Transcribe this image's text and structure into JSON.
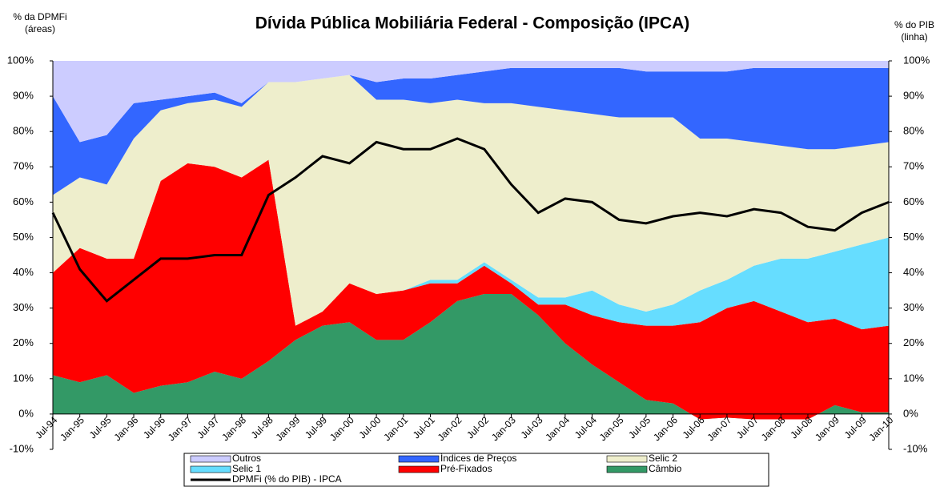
{
  "chart_data": {
    "type": "area",
    "title": "Dívida Pública Mobiliária Federal - Composição (IPCA)",
    "y_label": "% da DPMFi\n(áreas)",
    "y2_label": "% do PIB\n(linha)",
    "categories": [
      "Jul-94",
      "Jan-95",
      "Jul-95",
      "Jan-96",
      "Jul-96",
      "Jan-97",
      "Jul-97",
      "Jan-98",
      "Jul-98",
      "Jan-99",
      "Jul-99",
      "Jan-00",
      "Jul-00",
      "Jan-01",
      "Jul-01",
      "Jan-02",
      "Jul-02",
      "Jan-03",
      "Jul-03",
      "Jan-04",
      "Jul-04",
      "Jan-05",
      "Jul-05",
      "Jan-06",
      "Jul-06",
      "Jan-07",
      "Jul-07",
      "Jan-08",
      "Jul-08",
      "Jan-09",
      "Jul-09",
      "Jan-10"
    ],
    "series": [
      {
        "name": "Outros",
        "color": "#ccccff",
        "values": [
          10,
          23,
          21,
          12,
          11,
          10,
          9,
          12,
          6,
          6,
          5,
          4,
          6,
          5,
          5,
          4,
          3,
          2,
          2,
          2,
          2,
          2,
          3,
          3,
          3,
          3,
          2,
          2,
          2,
          2,
          2,
          2
        ]
      },
      {
        "name": "Índices de Preços",
        "color": "#3366ff",
        "values": [
          28,
          10,
          14,
          10,
          3,
          2,
          2,
          1,
          0,
          0,
          0,
          0,
          5,
          6,
          7,
          7,
          9,
          10,
          11,
          12,
          13,
          14,
          13,
          13,
          19,
          19,
          21,
          22,
          23,
          23,
          22,
          21
        ]
      },
      {
        "name": "Selic 2",
        "color": "#eeeecc",
        "values": [
          22,
          20,
          21,
          34,
          20,
          17,
          19,
          20,
          22,
          69,
          66,
          59,
          55,
          54,
          50,
          51,
          45,
          50,
          54,
          53,
          50,
          53,
          55,
          53,
          43,
          40,
          35,
          32,
          31,
          29,
          28,
          27
        ]
      },
      {
        "name": "Selic 1",
        "color": "#66ddff",
        "values": [
          0,
          0,
          0,
          0,
          0,
          0,
          0,
          0,
          0,
          0,
          0,
          0,
          0,
          0,
          1,
          1,
          1,
          1,
          2,
          2,
          7,
          5,
          4,
          6,
          9,
          8,
          10,
          15,
          18,
          19,
          24,
          25
        ]
      },
      {
        "name": "Pré-Fixados",
        "color": "#ff0000",
        "values": [
          29,
          38,
          33,
          38,
          58,
          62,
          58,
          57,
          57,
          4,
          4,
          11,
          13,
          14,
          11,
          5,
          8,
          3,
          3,
          11,
          14,
          17,
          21,
          22,
          27.5,
          31,
          33.5,
          30.5,
          27.5,
          24.5,
          23.5,
          24.5
        ]
      },
      {
        "name": "Câmbio",
        "color": "#339966",
        "values": [
          11,
          9,
          11,
          6,
          8,
          9,
          12,
          10,
          15,
          21,
          25,
          26,
          21,
          21,
          26,
          32,
          34,
          34,
          28,
          20,
          14,
          9,
          4,
          3,
          -1.5,
          -1,
          -1.5,
          -1.5,
          -1.5,
          2.5,
          0.5,
          0.5
        ]
      },
      {
        "name": "DPMFi (% do PIB) - IPCA",
        "color": "#000000",
        "type": "line",
        "axis": "y2",
        "values": [
          57,
          41,
          32,
          38,
          44,
          44,
          45,
          45,
          62,
          67,
          73,
          71,
          77,
          75,
          75,
          78,
          75,
          65,
          57,
          61,
          60,
          55,
          54,
          56,
          57,
          56,
          58,
          57,
          53,
          52,
          57,
          60
        ]
      }
    ],
    "ylim": [
      -10,
      100
    ],
    "yticks": [
      {
        "value": -10,
        "label": "-10%"
      },
      {
        "value": 0,
        "label": "0%"
      },
      {
        "value": 10,
        "label": "10%"
      },
      {
        "value": 20,
        "label": "20%"
      },
      {
        "value": 30,
        "label": "30%"
      },
      {
        "value": 40,
        "label": "40%"
      },
      {
        "value": 50,
        "label": "50%"
      },
      {
        "value": 60,
        "label": "60%"
      },
      {
        "value": 70,
        "label": "70%"
      },
      {
        "value": 80,
        "label": "80%"
      },
      {
        "value": 90,
        "label": "90%"
      },
      {
        "value": 100,
        "label": "100%"
      }
    ],
    "y2lim": [
      -10,
      100
    ],
    "y2ticks": [
      {
        "value": -10,
        "label": "-10%"
      },
      {
        "value": 0,
        "label": "0%"
      },
      {
        "value": 10,
        "label": "10%"
      },
      {
        "value": 20,
        "label": "20%"
      },
      {
        "value": 30,
        "label": "30%"
      },
      {
        "value": 40,
        "label": "40%"
      },
      {
        "value": 50,
        "label": "50%"
      },
      {
        "value": 60,
        "label": "60%"
      },
      {
        "value": 70,
        "label": "70%"
      },
      {
        "value": 80,
        "label": "80%"
      },
      {
        "value": 90,
        "label": "90%"
      },
      {
        "value": 100,
        "label": "100%"
      }
    ],
    "stacked": true,
    "legend": "bottom"
  }
}
